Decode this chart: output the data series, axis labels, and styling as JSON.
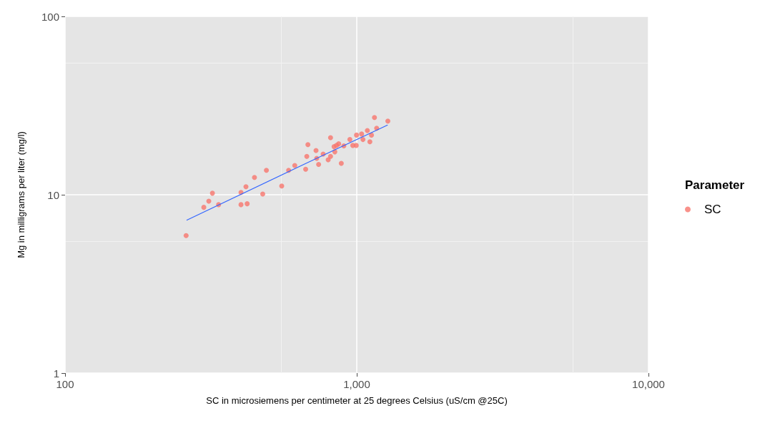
{
  "chart_data": {
    "type": "scatter",
    "xlabel": "SC in microsiemens per centimeter at 25 degrees Celsius (uS/cm @25C)",
    "ylabel": "Mg in milligrams per liter (mg/l)",
    "legend_title": "Parameter",
    "log": "xy",
    "grid": true,
    "legend": "right",
    "marker": "circle",
    "xlim": [
      100,
      10000
    ],
    "xticks": [
      100,
      {
        "value": 1000,
        "label": "1,000"
      },
      {
        "value": 10000,
        "label": "10,000"
      }
    ],
    "ylim": [
      1,
      100
    ],
    "yticks": [
      1,
      10,
      100
    ],
    "series": [
      {
        "name": "SC",
        "color": "#f8766d",
        "x": [
          260,
          299,
          311,
          320,
          336,
          401,
          401,
          421,
          417,
          446,
          476,
          490,
          553,
          584,
          613,
          668,
          674,
          680,
          725,
          729,
          740,
          767,
          798,
          813,
          813,
          836,
          841,
          852,
          867,
          885,
          903,
          947,
          969,
          996,
          998,
          1039,
          1050,
          1087,
          1109,
          1123,
          1150,
          1170,
          1278
        ],
        "values": [
          5.9,
          8.5,
          9.2,
          10.2,
          8.8,
          8.8,
          10.3,
          8.9,
          11.1,
          12.5,
          10.1,
          13.7,
          11.2,
          13.7,
          14.6,
          13.9,
          16.4,
          19.1,
          17.7,
          16,
          14.8,
          16.9,
          15.7,
          16.4,
          20.9,
          18.6,
          17.4,
          18.9,
          19.3,
          15,
          18.8,
          20.4,
          18.9,
          18.9,
          21.6,
          21.9,
          20.4,
          22.9,
          19.8,
          21.6,
          27.1,
          23.6,
          25.9
        ]
      },
      {
        "type": "line",
        "color": "#3366ff",
        "marker": "none",
        "x": [
          261,
          664,
          1276
        ],
        "values": [
          7.19,
          14.9,
          24.6
        ]
      }
    ]
  }
}
